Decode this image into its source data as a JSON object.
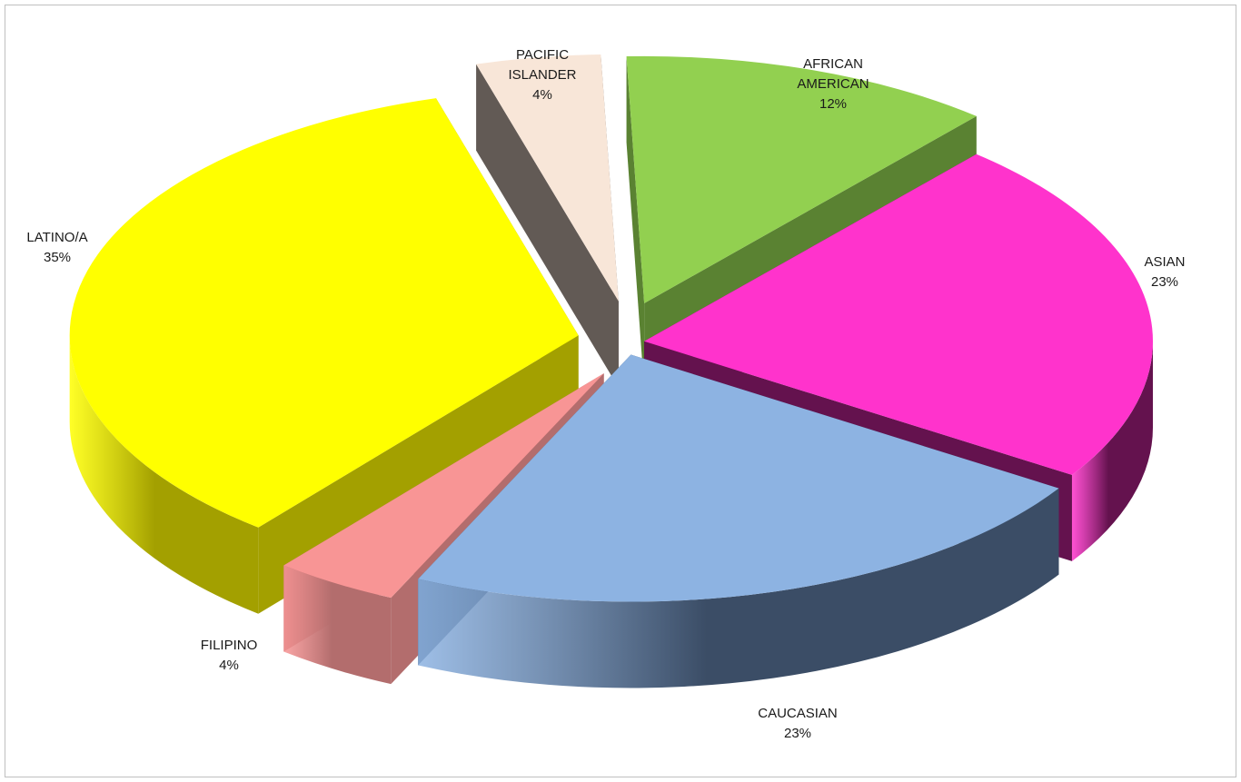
{
  "chart_data": {
    "type": "pie",
    "title": "",
    "style": "exploded-3d",
    "legend": "none",
    "slices": [
      {
        "label": [
          "AFRICAN",
          "AMERICAN"
        ],
        "pct": "12%",
        "value": 12,
        "color": "#92D050",
        "side_color": "#5A8232"
      },
      {
        "label": [
          "ASIAN"
        ],
        "pct": "23%",
        "value": 23,
        "color": "#FF33CC",
        "side_color": "#64124E"
      },
      {
        "label": [
          "CAUCASIAN"
        ],
        "pct": "23%",
        "value": 23,
        "color": "#8DB3E2",
        "side_color": "#3B4D66"
      },
      {
        "label": [
          "FILIPINO"
        ],
        "pct": "4%",
        "value": 4,
        "color": "#F89595",
        "side_color": "#B36D6D"
      },
      {
        "label": [
          "LATINO/A"
        ],
        "pct": "35%",
        "value": 35,
        "color": "#FFFF00",
        "side_color": "#A3A000"
      },
      {
        "label": [
          "PACIFIC",
          "ISLANDER"
        ],
        "pct": "4%",
        "value": 4,
        "color": "#F8E6D8",
        "side_color": "#625A55"
      }
    ]
  }
}
